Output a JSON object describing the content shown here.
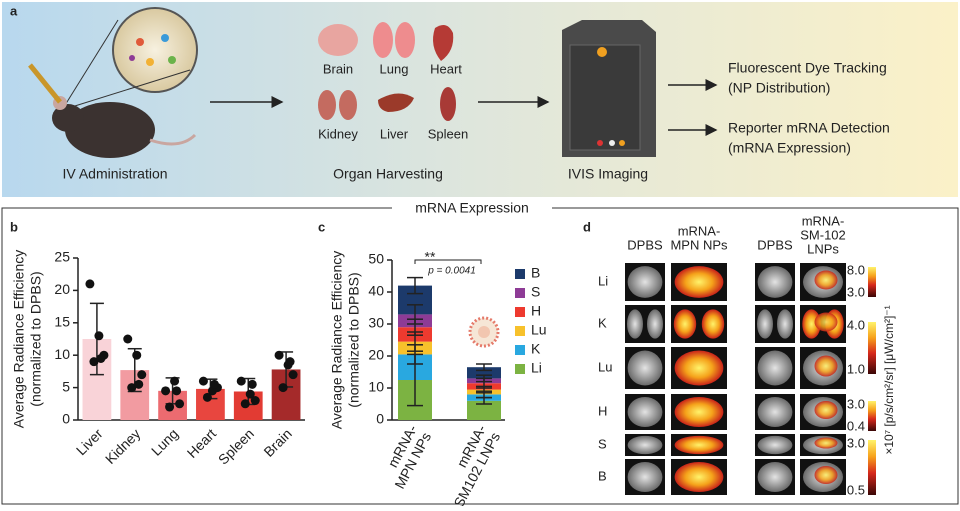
{
  "panel_a": {
    "label": "a",
    "steps": [
      "IV Administration",
      "Organ Harvesting",
      "IVIS Imaging"
    ],
    "organs": [
      "Brain",
      "Lung",
      "Heart",
      "Kidney",
      "Liver",
      "Spleen"
    ],
    "outputs": [
      [
        "Fluorescent Dye Tracking",
        "(NP Distribution)"
      ],
      [
        "Reporter mRNA Detection",
        "(mRNA Expression)"
      ]
    ]
  },
  "section_title": "mRNA Expression",
  "chart_data": [
    {
      "panel": "b",
      "type": "bar",
      "ylabel": [
        "Average Radiance Efficiency",
        "(normalized to DPBS)"
      ],
      "categories": [
        "Liver",
        "Kidney",
        "Lung",
        "Heart",
        "Spleen",
        "Brain"
      ],
      "values": [
        12.5,
        7.7,
        4.5,
        4.8,
        4.4,
        7.8
      ],
      "errors": [
        5.5,
        3.3,
        2.0,
        1.5,
        2.0,
        2.7
      ],
      "points": [
        [
          21,
          13,
          10,
          9,
          9.5
        ],
        [
          12.5,
          10,
          7,
          5,
          5.5
        ],
        [
          4.5,
          6,
          2.5,
          2,
          4.5
        ],
        [
          6,
          4.5,
          5,
          3.5,
          5.5
        ],
        [
          6,
          4,
          3,
          2.5,
          5.5
        ],
        [
          10,
          8.5,
          7,
          5,
          9
        ]
      ],
      "colors": [
        "#f9d3d8",
        "#f29ba1",
        "#ec6b70",
        "#e8463f",
        "#e23b33",
        "#a52a2a"
      ],
      "ylim": [
        0,
        25
      ],
      "yticks": [
        0,
        5,
        10,
        15,
        20,
        25
      ]
    },
    {
      "panel": "c",
      "type": "stacked_bar",
      "ylabel": [
        "Average Radiance Efficiency",
        "(normalized to DPBS)"
      ],
      "categories": [
        [
          "mRNA-",
          "MPN NPs"
        ],
        [
          "mRNA-",
          "SM102 LNPs"
        ]
      ],
      "series": [
        {
          "name": "Li",
          "color": "#7cb342",
          "values": [
            12.5,
            6
          ],
          "errors": [
            8,
            1
          ]
        },
        {
          "name": "K",
          "color": "#29a8e0",
          "values": [
            8,
            2
          ],
          "errors": [
            3,
            1
          ]
        },
        {
          "name": "Lu",
          "color": "#f7c12b",
          "values": [
            4,
            1.5
          ],
          "errors": [
            3,
            1
          ]
        },
        {
          "name": "H",
          "color": "#ee3a2f",
          "values": [
            4.5,
            2
          ],
          "errors": [
            2.5,
            1.5
          ]
        },
        {
          "name": "S",
          "color": "#8e3b96",
          "values": [
            4,
            1.5
          ],
          "errors": [
            3,
            1
          ]
        },
        {
          "name": "B",
          "color": "#1c3a6b",
          "values": [
            9,
            3.5
          ],
          "errors": [
            2.5,
            1
          ]
        }
      ],
      "significance": "**",
      "p_value": "p = 0.0041",
      "ylim": [
        0,
        50
      ],
      "yticks": [
        0,
        10,
        20,
        30,
        40,
        50
      ]
    }
  ],
  "panel_d": {
    "label": "d",
    "columns": [
      [
        "DPBS"
      ],
      [
        "mRNA-",
        "MPN NPs"
      ],
      [
        "DPBS"
      ],
      [
        "mRNA-",
        "SM-102",
        "LNPs"
      ]
    ],
    "rows": [
      "Li",
      "K",
      "Lu",
      "H",
      "S",
      "B"
    ],
    "scales": [
      [
        "8.0",
        "3.0"
      ],
      [
        "4.0",
        "1.0"
      ],
      [
        "3.0",
        "0.4"
      ],
      [
        "3.0",
        "0.5"
      ]
    ],
    "scale_label": "×10⁷ [p/s/cm²/sr] [μW/cm²]⁻¹"
  }
}
